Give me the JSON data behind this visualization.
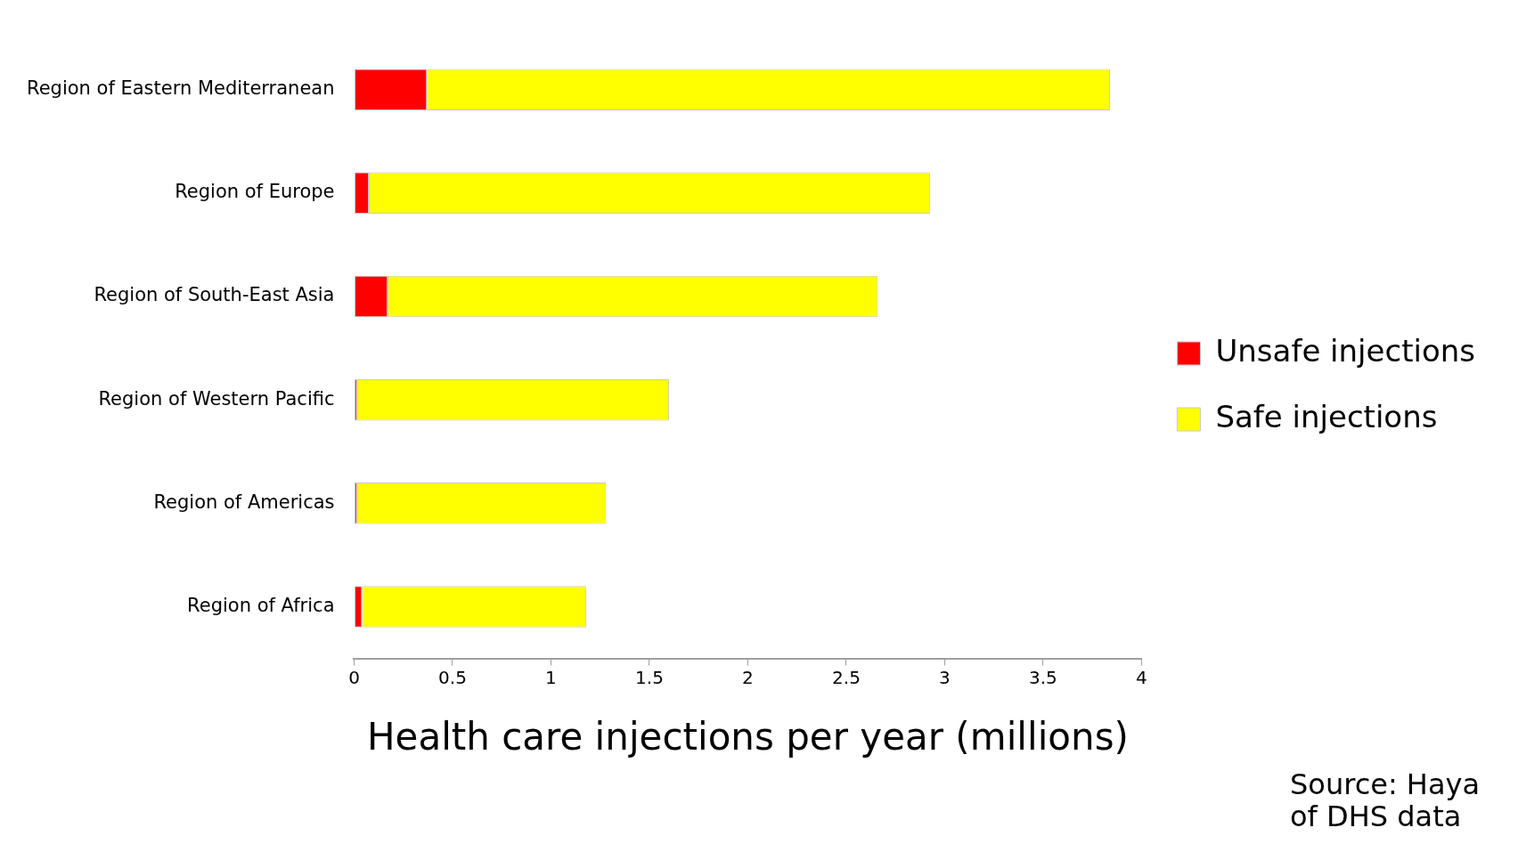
{
  "chart_data": {
    "type": "bar",
    "orientation": "horizontal",
    "stacked": true,
    "xlabel": "Health care injections per year (millions)",
    "categories": [
      "Region of Eastern Mediterranean",
      "Region of Europe",
      "Region of South-East Asia",
      "Region of Western Pacific",
      "Region of Americas",
      "Region of Africa"
    ],
    "series": [
      {
        "name": "Unsafe injections",
        "color": "#ff0000",
        "values": [
          0.37,
          0.075,
          0.17,
          0.015,
          0.015,
          0.04
        ]
      },
      {
        "name": "Safe injections",
        "color": "#ffff00",
        "values": [
          3.47,
          2.85,
          2.49,
          1.585,
          1.265,
          1.14
        ]
      }
    ],
    "xlim": [
      0,
      4
    ],
    "xticks": [
      0,
      0.5,
      1,
      1.5,
      2,
      2.5,
      3,
      3.5,
      4
    ],
    "grid": false,
    "legend": "right",
    "annotations": [
      "Source: Haya",
      "of DHS data"
    ]
  }
}
